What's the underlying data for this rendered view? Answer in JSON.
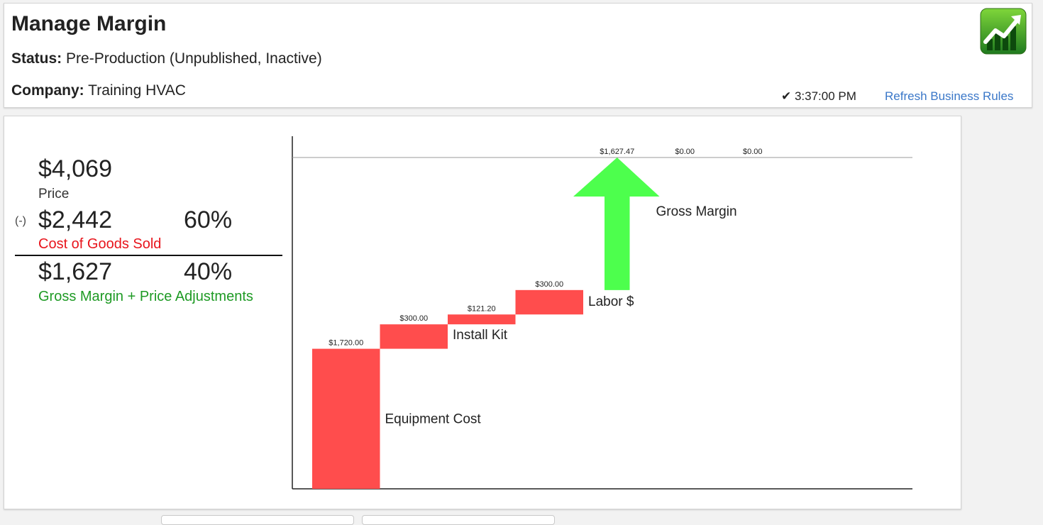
{
  "header": {
    "title": "Manage Margin",
    "status_label": "Status:",
    "status_value": "Pre-Production (Unpublished, Inactive)",
    "company_label": "Company:",
    "company_value": "Training HVAC",
    "time": "✔ 3:37:00 PM",
    "refresh_label": "Refresh Business Rules",
    "app_icon": "margin-chart-icon"
  },
  "summary": {
    "price_value": "$4,069",
    "price_label": "Price",
    "minus_sign": "(-)",
    "cogs_value": "$2,442",
    "cogs_percent": "60%",
    "cogs_label": "Cost of Goods Sold",
    "margin_value": "$1,627",
    "margin_percent": "40%",
    "margin_label": "Gross Margin + Price Adjustments"
  },
  "chart_data": {
    "type": "waterfall",
    "total": 4069,
    "steps": [
      {
        "name": "Equipment Cost",
        "value": 1720.0,
        "value_label": "$1,720.00",
        "kind": "cost"
      },
      {
        "name": "Install Kit",
        "value": 300.0,
        "value_label": "$300.00",
        "kind": "cost"
      },
      {
        "name": "",
        "value": 121.2,
        "value_label": "$121.20",
        "kind": "cost"
      },
      {
        "name": "Labor $",
        "value": 300.0,
        "value_label": "$300.00",
        "kind": "cost"
      },
      {
        "name": "Gross Margin",
        "value": 1627.47,
        "value_label": "$1,627.47",
        "kind": "margin"
      },
      {
        "name": "",
        "value": 0.0,
        "value_label": "$0.00",
        "kind": "adjustment"
      },
      {
        "name": "",
        "value": 0.0,
        "value_label": "$0.00",
        "kind": "adjustment"
      }
    ],
    "colors": {
      "cost": "#ff4d4d",
      "margin": "#4dff4d"
    }
  }
}
